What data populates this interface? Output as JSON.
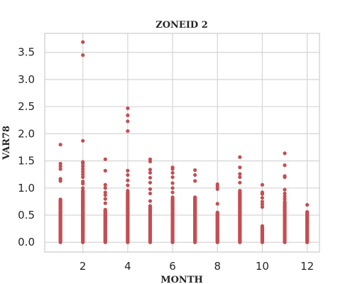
{
  "chart_data": {
    "type": "scatter",
    "title": "ZONEID 2",
    "xlabel": "MONTH",
    "ylabel": "VAR78",
    "xlim": [
      0.3,
      12.55
    ],
    "ylim": [
      -0.18,
      3.85
    ],
    "xticks": [
      2,
      4,
      6,
      8,
      10,
      12
    ],
    "yticks": [
      0.0,
      0.5,
      1.0,
      1.5,
      2.0,
      2.5,
      3.0,
      3.5
    ],
    "xtick_labels": [
      "2",
      "4",
      "6",
      "8",
      "10",
      "12"
    ],
    "ytick_labels": [
      "0.0",
      "0.5",
      "1.0",
      "1.5",
      "2.0",
      "2.5",
      "3.0",
      "3.5"
    ],
    "grid": true,
    "colors": {
      "marker": "#c44e52",
      "grid": "#d5d5d5",
      "frame": "#cccccc",
      "text": "#262626"
    },
    "series": [
      {
        "points": [
          {
            "x": 1,
            "ys": [
              1.8,
              1.45,
              1.4,
              1.35,
              1.17,
              1.13,
              0.79
            ]
          },
          {
            "x": 2,
            "ys": [
              3.69,
              3.45,
              1.87,
              1.48,
              1.45,
              1.4,
              1.35,
              1.3,
              1.25,
              1.2,
              1.12,
              1.08,
              1.0,
              0.95
            ]
          },
          {
            "x": 3,
            "ys": [
              1.53,
              1.32,
              1.06,
              1.0,
              0.92,
              0.87,
              0.8,
              0.72
            ]
          },
          {
            "x": 4,
            "ys": [
              2.47,
              2.34,
              2.23,
              2.05,
              1.32,
              1.24,
              1.14,
              1.05,
              0.95
            ]
          },
          {
            "x": 5,
            "ys": [
              1.53,
              1.49,
              1.34,
              1.28,
              1.19,
              1.1,
              0.98,
              0.9,
              0.76
            ]
          },
          {
            "x": 6,
            "ys": [
              1.38,
              1.35,
              1.28,
              1.2,
              1.09,
              1.0,
              0.92,
              0.83
            ]
          },
          {
            "x": 7,
            "ys": [
              1.33,
              1.24,
              1.13,
              0.83
            ]
          },
          {
            "x": 8,
            "ys": [
              1.07,
              1.03,
              0.98,
              0.71
            ]
          },
          {
            "x": 9,
            "ys": [
              1.57,
              1.38,
              1.26,
              1.2,
              1.1,
              0.95
            ]
          },
          {
            "x": 10,
            "ys": [
              1.06,
              0.92,
              0.89,
              0.82,
              0.75,
              0.7,
              0.65
            ]
          },
          {
            "x": 11,
            "ys": [
              1.64,
              1.42,
              1.22,
              1.2,
              0.97,
              0.9,
              0.85,
              0.8
            ]
          },
          {
            "x": 12,
            "ys": [
              0.69,
              0.56,
              0.5
            ]
          }
        ],
        "dense_ranges": [
          {
            "x": 1,
            "y_min": 0.0,
            "y_max": 0.78
          },
          {
            "x": 2,
            "y_min": 0.0,
            "y_max": 0.95
          },
          {
            "x": 3,
            "y_min": 0.0,
            "y_max": 0.6
          },
          {
            "x": 4,
            "y_min": 0.0,
            "y_max": 0.92
          },
          {
            "x": 5,
            "y_min": 0.0,
            "y_max": 0.67
          },
          {
            "x": 6,
            "y_min": 0.0,
            "y_max": 0.8
          },
          {
            "x": 7,
            "y_min": 0.0,
            "y_max": 0.82
          },
          {
            "x": 8,
            "y_min": 0.0,
            "y_max": 0.55
          },
          {
            "x": 9,
            "y_min": 0.0,
            "y_max": 0.93
          },
          {
            "x": 10,
            "y_min": 0.0,
            "y_max": 0.3
          },
          {
            "x": 11,
            "y_min": 0.0,
            "y_max": 0.75
          },
          {
            "x": 12,
            "y_min": 0.0,
            "y_max": 0.55
          }
        ]
      }
    ]
  }
}
